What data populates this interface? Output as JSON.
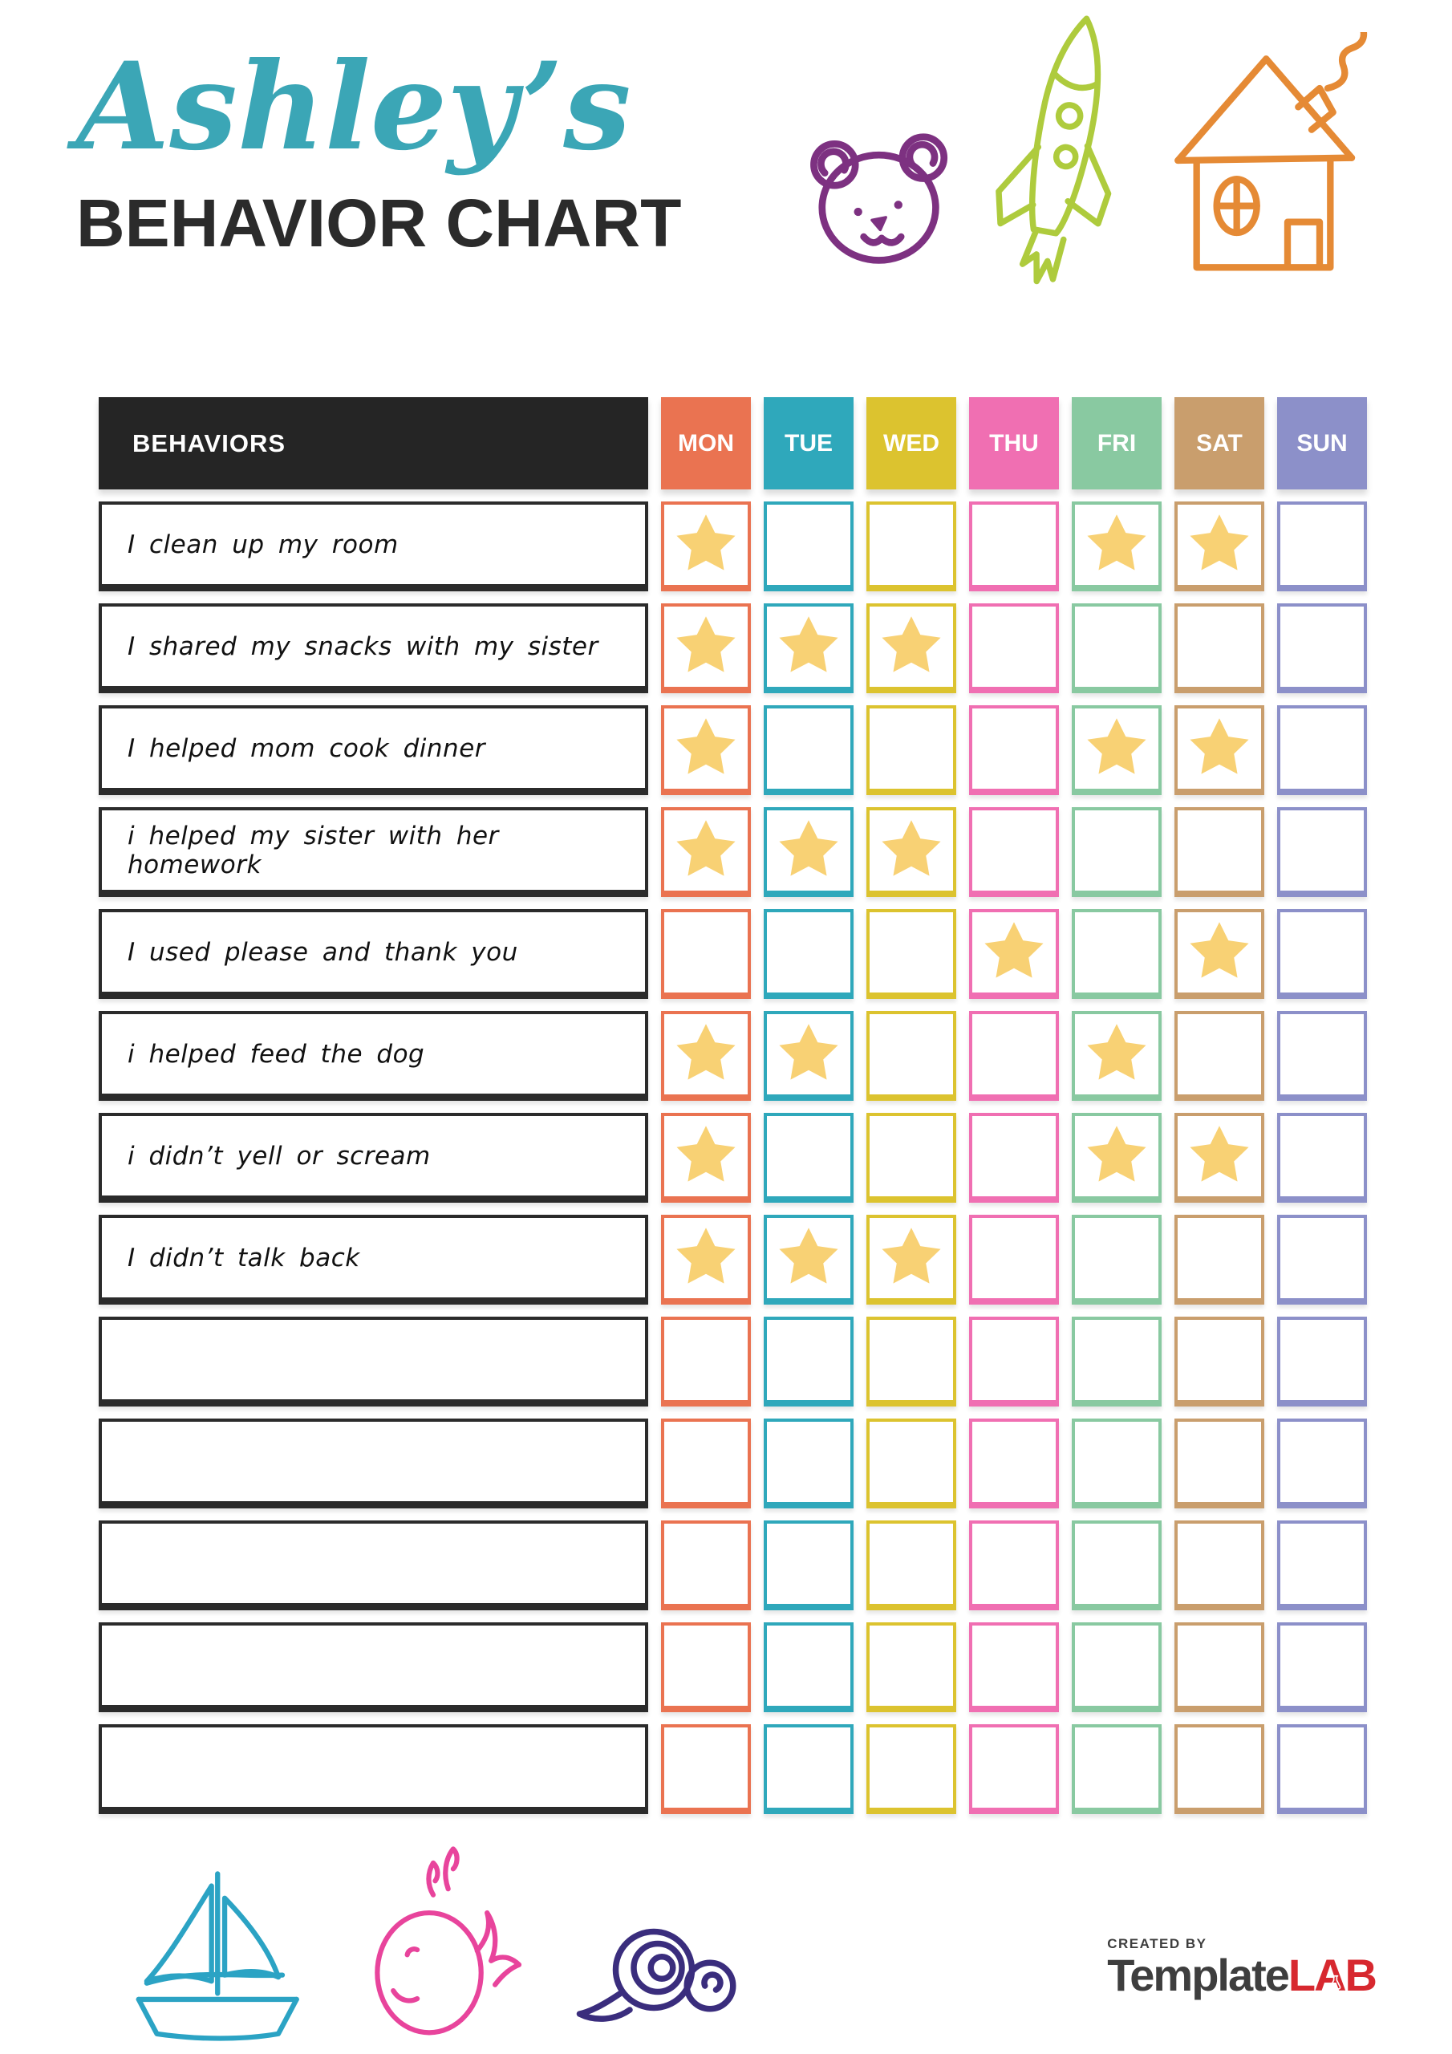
{
  "title": {
    "script": "Ashley’s",
    "main": "BEHAVIOR CHART"
  },
  "colors": {
    "title_teal": "#3BA6B6",
    "ink": "#2B2B2B",
    "header_black": "#252525",
    "star": "#F8D174",
    "bear_purple": "#7D3181",
    "rocket_green": "#AECB3D",
    "house_orange": "#E58A35",
    "boat_blue": "#2BA3C4",
    "whale_pink": "#E8449C",
    "snail_navy": "#3A2D7D",
    "logo_gray": "#3E3E3E",
    "logo_red": "#D7282F"
  },
  "table": {
    "header": {
      "behaviors": "BEHAVIORS",
      "days": [
        "MON",
        "TUE",
        "WED",
        "THU",
        "FRI",
        "SAT",
        "SUN"
      ]
    },
    "day_colors": {
      "MON": "#EA7351",
      "TUE": "#2FA8BB",
      "WED": "#DCC32F",
      "THU": "#F06FB2",
      "FRI": "#89C9A1",
      "SAT": "#C99E6D",
      "SUN": "#8C90C9"
    },
    "rows": [
      {
        "behavior": "I clean up my room",
        "stars": [
          1,
          0,
          0,
          0,
          1,
          1,
          0
        ]
      },
      {
        "behavior": "I shared my snacks with my sister",
        "stars": [
          1,
          1,
          1,
          0,
          0,
          0,
          0
        ]
      },
      {
        "behavior": "I helped mom cook dinner",
        "stars": [
          1,
          0,
          0,
          0,
          1,
          1,
          0
        ]
      },
      {
        "behavior": "i helped my sister with her homework",
        "stars": [
          1,
          1,
          1,
          0,
          0,
          0,
          0
        ]
      },
      {
        "behavior": "I used please and thank you",
        "stars": [
          0,
          0,
          0,
          1,
          0,
          1,
          0
        ]
      },
      {
        "behavior": "i helped feed the dog",
        "stars": [
          1,
          1,
          0,
          0,
          1,
          0,
          0
        ]
      },
      {
        "behavior": "i didn’t yell or scream",
        "stars": [
          1,
          0,
          0,
          0,
          1,
          1,
          0
        ]
      },
      {
        "behavior": "I didn’t talk back",
        "stars": [
          1,
          1,
          1,
          0,
          0,
          0,
          0
        ]
      },
      {
        "behavior": "",
        "stars": [
          0,
          0,
          0,
          0,
          0,
          0,
          0
        ]
      },
      {
        "behavior": "",
        "stars": [
          0,
          0,
          0,
          0,
          0,
          0,
          0
        ]
      },
      {
        "behavior": "",
        "stars": [
          0,
          0,
          0,
          0,
          0,
          0,
          0
        ]
      },
      {
        "behavior": "",
        "stars": [
          0,
          0,
          0,
          0,
          0,
          0,
          0
        ]
      },
      {
        "behavior": "",
        "stars": [
          0,
          0,
          0,
          0,
          0,
          0,
          0
        ]
      }
    ]
  },
  "header_icons": [
    "bear-icon",
    "rocket-icon",
    "house-icon"
  ],
  "footer": {
    "icons": [
      "sailboat-icon",
      "whale-icon",
      "snail-icon"
    ],
    "logo": {
      "created_by": "CREATED BY",
      "brand": "Template",
      "suffix": "LAB"
    }
  }
}
